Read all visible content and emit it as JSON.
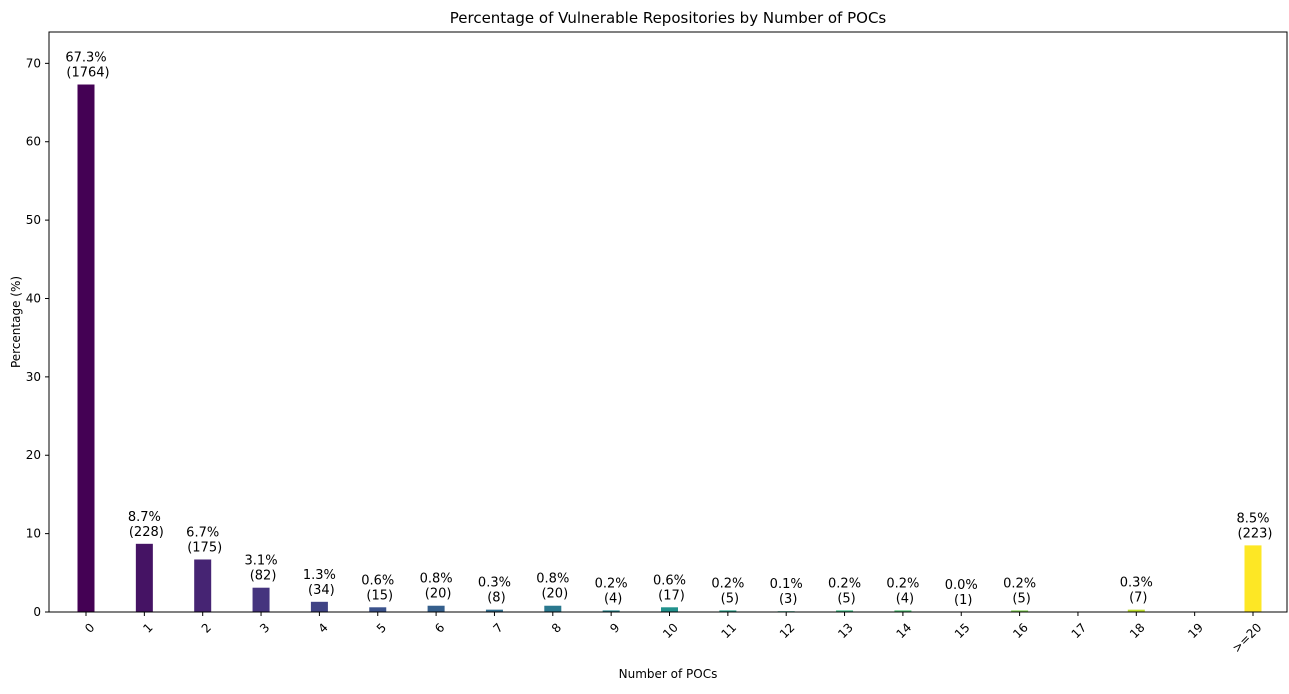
{
  "chart_data": {
    "type": "bar",
    "title": "Percentage of Vulnerable Repositories by Number of POCs",
    "xlabel": "Number of POCs",
    "ylabel": "Percentage (%)",
    "ylim": [
      0,
      74
    ],
    "yticks": [
      0,
      10,
      20,
      30,
      40,
      50,
      60,
      70
    ],
    "grid": false,
    "legend": false,
    "categories": [
      "0",
      "1",
      "2",
      "3",
      "4",
      "5",
      "6",
      "7",
      "8",
      "9",
      "10",
      "11",
      "12",
      "13",
      "14",
      "15",
      "16",
      "17",
      "18",
      "19",
      ">=20"
    ],
    "values": [
      67.3,
      8.7,
      6.7,
      3.1,
      1.3,
      0.6,
      0.8,
      0.3,
      0.8,
      0.2,
      0.6,
      0.2,
      0.1,
      0.2,
      0.2,
      0.0,
      0.2,
      null,
      0.3,
      null,
      8.5
    ],
    "percent_labels": [
      "67.3%",
      "8.7%",
      "6.7%",
      "3.1%",
      "1.3%",
      "0.6%",
      "0.8%",
      "0.3%",
      "0.8%",
      "0.2%",
      "0.6%",
      "0.2%",
      "0.1%",
      "0.2%",
      "0.2%",
      "0.0%",
      "0.2%",
      "",
      "0.3%",
      "",
      "8.5%"
    ],
    "count_labels": [
      "(1764)",
      "(228)",
      "(175)",
      "(82)",
      "(34)",
      "(15)",
      "(20)",
      "(8)",
      "(20)",
      "(4)",
      "(17)",
      "(5)",
      "(3)",
      "(5)",
      "(4)",
      "(1)",
      "(5)",
      "",
      "(7)",
      "",
      "(223)"
    ],
    "colors": [
      "#440154",
      "#472d7b",
      "#3b528b",
      "#2c728e",
      "#21918c",
      "#28ae80",
      "#5ec962",
      "#addc30",
      "#fde725"
    ]
  }
}
